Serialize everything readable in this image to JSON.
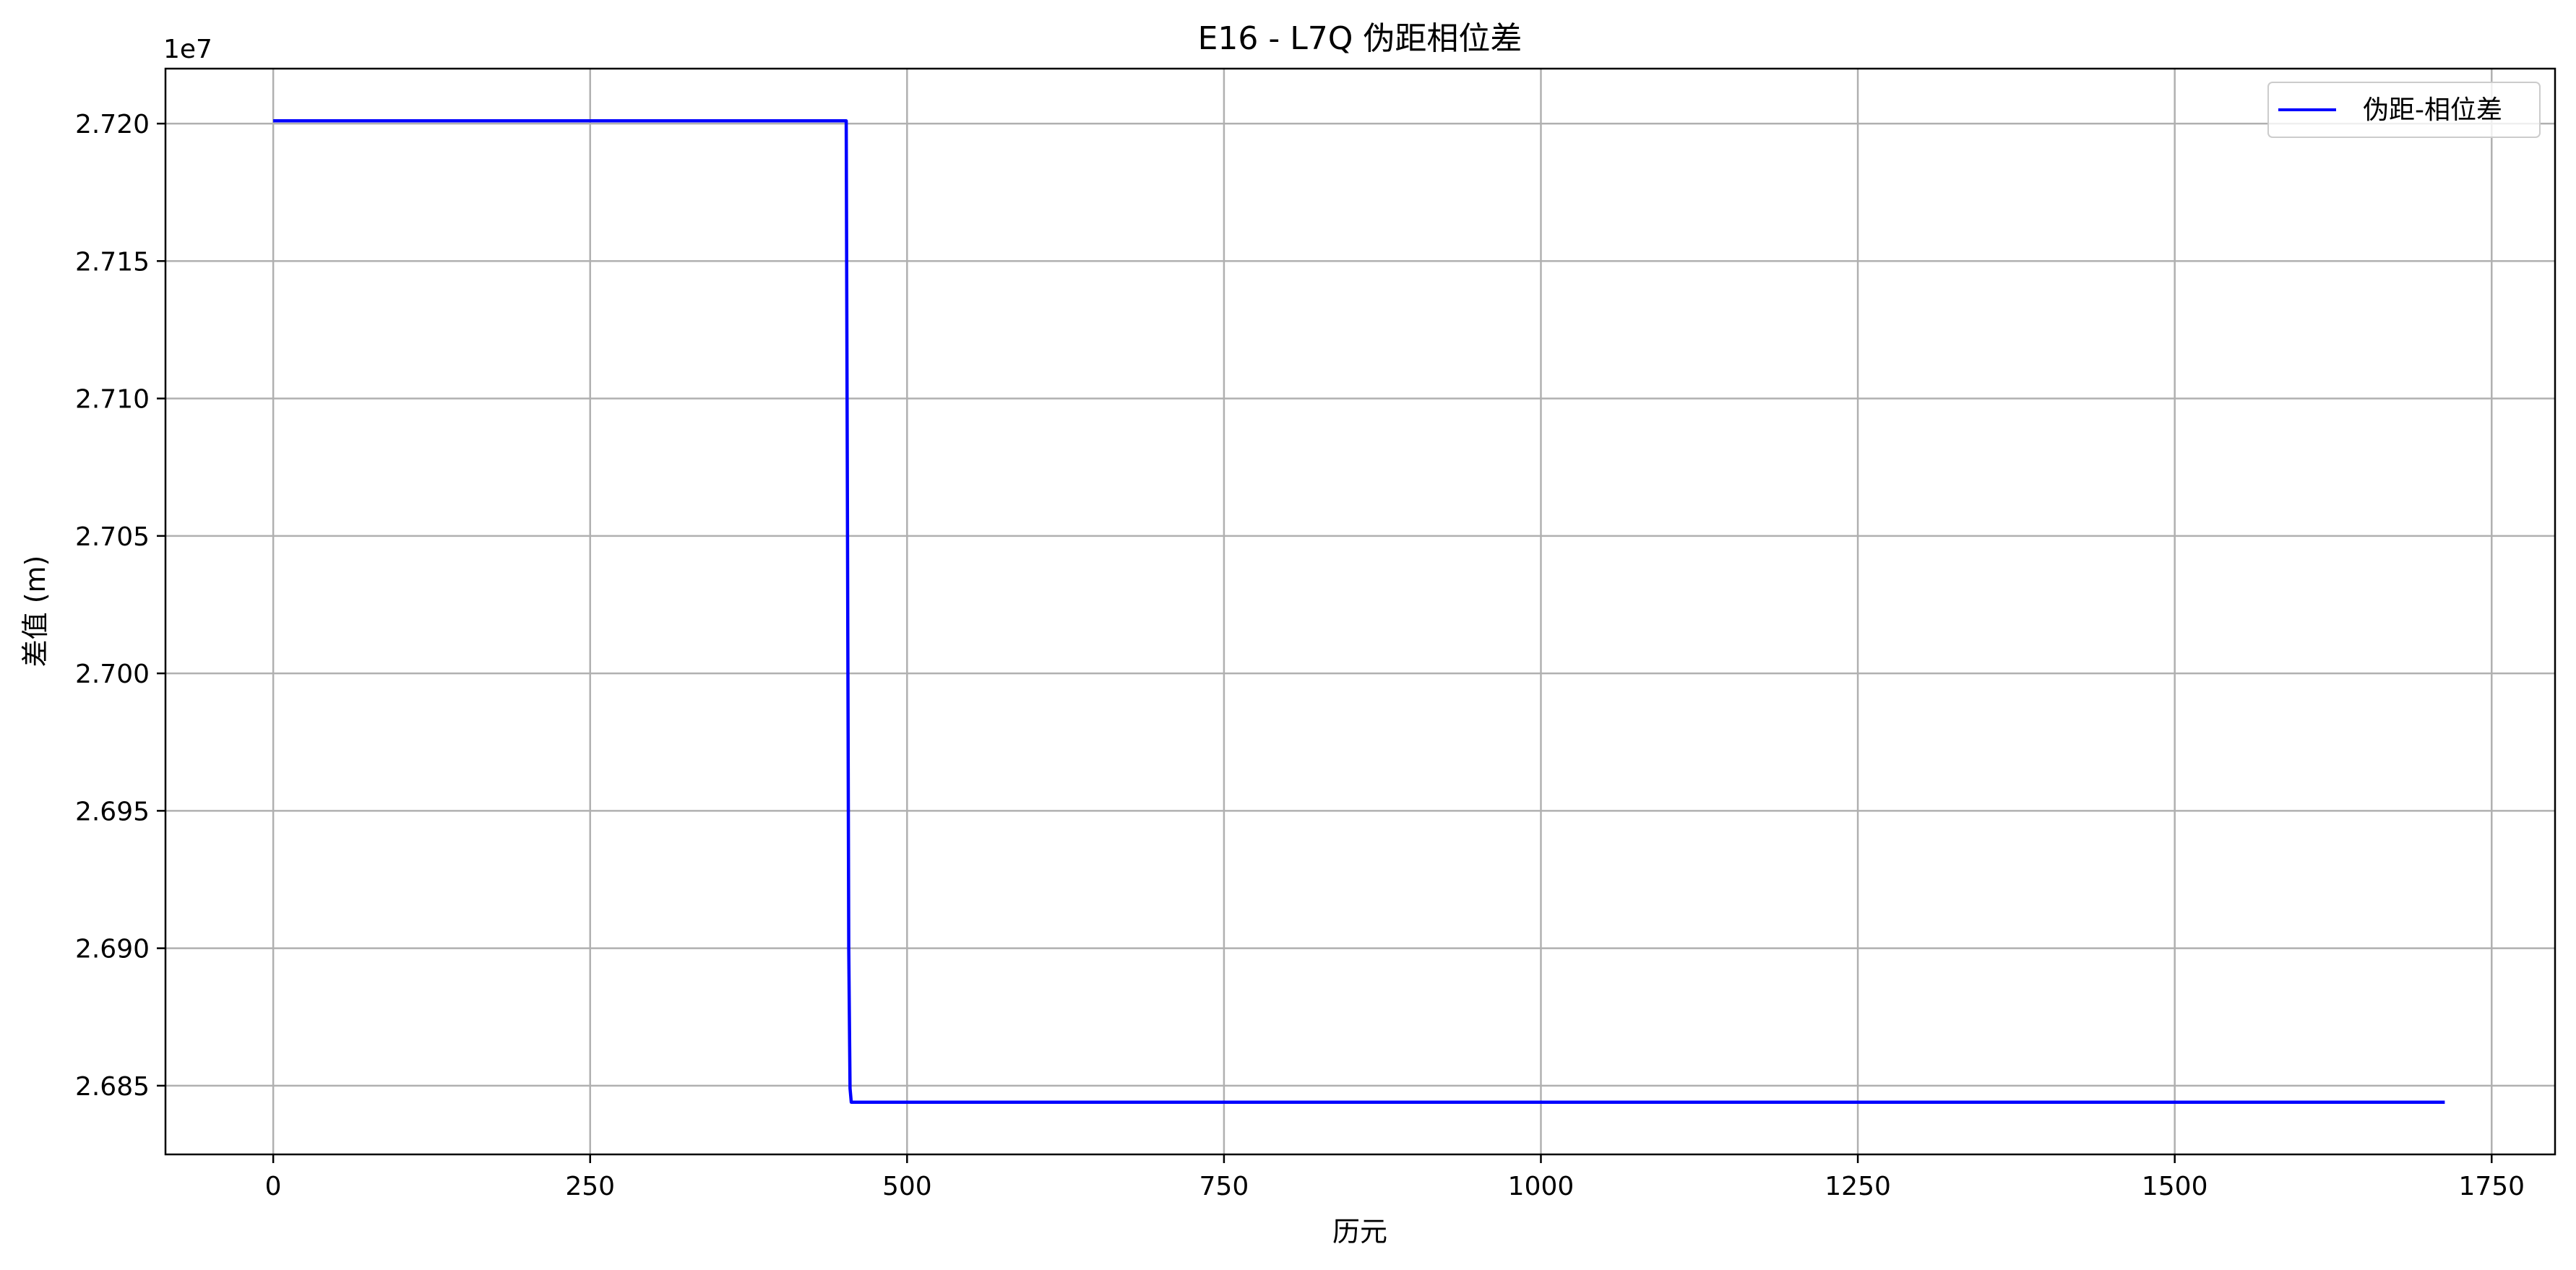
{
  "chart_data": {
    "type": "line",
    "title": "E16 - L7Q 伪距相位差",
    "xlabel": "历元",
    "ylabel": "差值 (m)",
    "y_offset_text": "1e7",
    "xlim": [
      -85,
      1800
    ],
    "ylim": [
      26.825,
      27.22
    ],
    "x_ticks": [
      0,
      250,
      500,
      750,
      1000,
      1250,
      1500,
      1750
    ],
    "x_tick_labels": [
      "0",
      "250",
      "500",
      "750",
      "1000",
      "1250",
      "1500",
      "1750"
    ],
    "y_ticks": [
      26.85,
      26.9,
      26.95,
      27.0,
      27.05,
      27.1,
      27.15,
      27.2
    ],
    "y_tick_labels": [
      "2.685",
      "2.690",
      "2.695",
      "2.700",
      "2.705",
      "2.710",
      "2.715",
      "2.720"
    ],
    "grid": true,
    "legend_position": "top-right",
    "series": [
      {
        "name": "伪距-相位差",
        "color": "#0000ff",
        "x": [
          0,
          452,
          453,
          454,
          455,
          456,
          1713
        ],
        "y": [
          27.201,
          27.201,
          27.05,
          26.9,
          26.849,
          26.844,
          26.844
        ]
      }
    ]
  }
}
